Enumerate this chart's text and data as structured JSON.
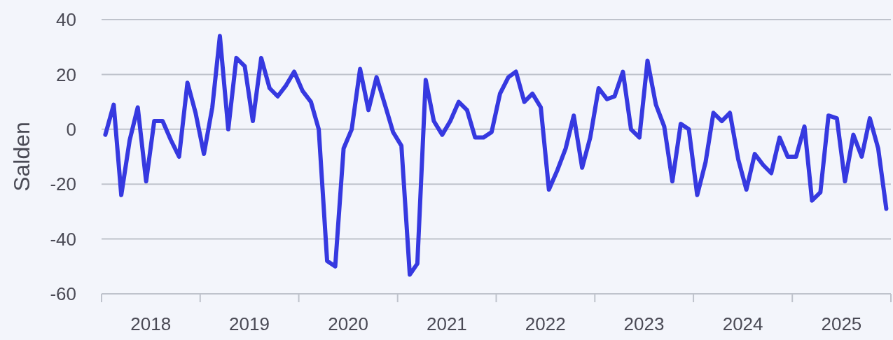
{
  "chart_data": {
    "type": "line",
    "ylabel": "Salden",
    "x": [
      "2018-01-15",
      "2018-02-15",
      "2018-03-15",
      "2018-04-15",
      "2018-05-15",
      "2018-06-15",
      "2018-07-15",
      "2018-08-15",
      "2018-09-15",
      "2018-10-15",
      "2018-11-15",
      "2018-12-15",
      "2019-01-15",
      "2019-02-15",
      "2019-03-15",
      "2019-04-15",
      "2019-05-15",
      "2019-06-15",
      "2019-07-15",
      "2019-08-15",
      "2019-09-15",
      "2019-10-15",
      "2019-11-15",
      "2019-12-15",
      "2020-01-15",
      "2020-02-15",
      "2020-03-15",
      "2020-04-15",
      "2020-05-15",
      "2020-06-15",
      "2020-07-15",
      "2020-08-15",
      "2020-09-15",
      "2020-10-15",
      "2020-11-15",
      "2020-12-15",
      "2021-01-15",
      "2021-02-15",
      "2021-03-15",
      "2021-04-15",
      "2021-05-15",
      "2021-06-15",
      "2021-07-15",
      "2021-08-15",
      "2021-09-15",
      "2021-10-15",
      "2021-11-15",
      "2021-12-15",
      "2022-01-15",
      "2022-02-15",
      "2022-03-15",
      "2022-04-15",
      "2022-05-15",
      "2022-06-15",
      "2022-07-15",
      "2022-08-15",
      "2022-09-15",
      "2022-10-15",
      "2022-11-15",
      "2022-12-15",
      "2023-01-15",
      "2023-02-15",
      "2023-03-15",
      "2023-04-15",
      "2023-05-15",
      "2023-06-15",
      "2023-07-15",
      "2023-08-15",
      "2023-09-15",
      "2023-10-15",
      "2023-11-15",
      "2023-12-15",
      "2024-01-15",
      "2024-02-15",
      "2024-03-15",
      "2024-04-15",
      "2024-05-15",
      "2024-06-15",
      "2024-07-15",
      "2024-08-15",
      "2024-09-15",
      "2024-10-15",
      "2024-11-15",
      "2024-12-15",
      "2025-01-15",
      "2025-02-15",
      "2025-03-15",
      "2025-04-15",
      "2025-05-15",
      "2025-06-15",
      "2025-07-15",
      "2025-08-15",
      "2025-09-15",
      "2025-10-15",
      "2025-11-15",
      "2025-12-15"
    ],
    "series": [
      {
        "color": "#3639e0",
        "values": [
          -2,
          9,
          -24,
          -4,
          8,
          -19,
          3,
          3,
          -4,
          -10,
          17,
          6,
          -9,
          8,
          34,
          0,
          26,
          23,
          3,
          26,
          15,
          12,
          16,
          21,
          14,
          10,
          0,
          -48,
          -50,
          -7,
          0,
          22,
          7,
          19,
          9,
          -1,
          -6,
          -53,
          -49,
          18,
          3,
          -2,
          3,
          10,
          7,
          -3,
          -3,
          -1,
          13,
          19,
          21,
          10,
          13,
          8,
          -22,
          -15,
          -7,
          5,
          -14,
          -3,
          15,
          11,
          12,
          21,
          0,
          -3,
          25,
          9,
          1,
          -19,
          2,
          0,
          -24,
          -12,
          6,
          3,
          6,
          -11,
          -22,
          -9,
          -13,
          -16,
          -3,
          -10,
          -10,
          1,
          -26,
          -23,
          5,
          4,
          -19,
          -2,
          -10,
          4,
          -7,
          -29
        ]
      }
    ],
    "xlim": [
      "2018-01-01",
      "2026-01-01"
    ],
    "xticks": [
      {
        "value": "2018-01-01",
        "label": null
      },
      {
        "value": "2018-07-02",
        "label": "2018"
      },
      {
        "value": "2019-01-01",
        "label": null
      },
      {
        "value": "2019-07-02",
        "label": "2019"
      },
      {
        "value": "2020-01-01",
        "label": null
      },
      {
        "value": "2020-07-02",
        "label": "2020"
      },
      {
        "value": "2021-01-01",
        "label": null
      },
      {
        "value": "2021-07-02",
        "label": "2021"
      },
      {
        "value": "2022-01-01",
        "label": null
      },
      {
        "value": "2022-07-02",
        "label": "2022"
      },
      {
        "value": "2023-01-01",
        "label": null
      },
      {
        "value": "2023-07-02",
        "label": "2023"
      },
      {
        "value": "2024-01-01",
        "label": null
      },
      {
        "value": "2024-07-02",
        "label": "2024"
      },
      {
        "value": "2025-01-01",
        "label": null
      },
      {
        "value": "2025-07-02",
        "label": "2025"
      },
      {
        "value": "2026-01-01",
        "label": null
      }
    ],
    "ylim": [
      -60,
      40
    ],
    "yticks": [
      -60,
      -40,
      -20,
      0,
      20,
      40
    ],
    "grid": "y",
    "marker": "none",
    "line_style": "solid"
  }
}
